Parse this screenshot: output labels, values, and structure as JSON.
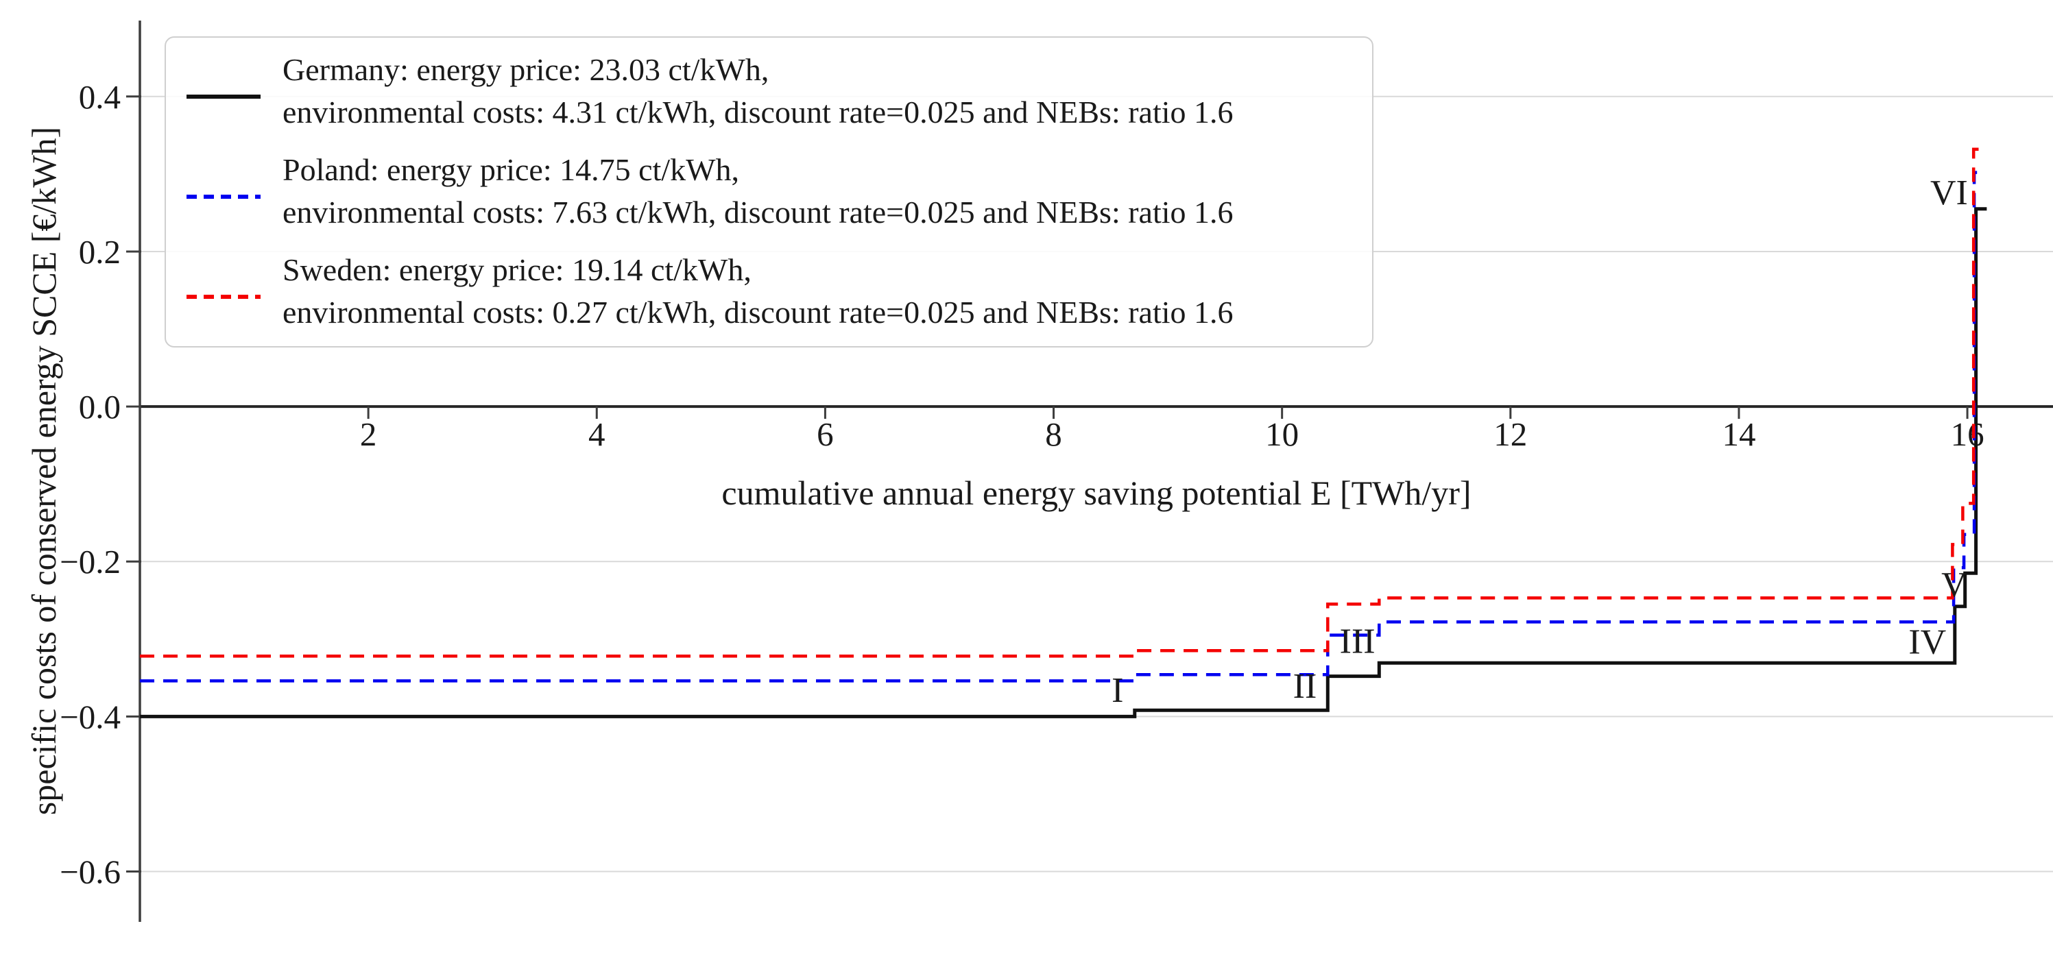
{
  "figure": {
    "background": "#ffffff",
    "text_color": "#1a1a1a",
    "grid_color": "#d9d9d9",
    "axis_color": "#262626",
    "spine_color": "#3d3d3d",
    "legend_border_color": "#cfcfcf"
  },
  "chart_data": {
    "type": "line",
    "subtype": "step",
    "title": "",
    "xlabel": "cumulative annual energy saving potential E [TWh/yr]",
    "ylabel": "specific costs of conserved energy SCCE [€/kWh]",
    "xlim": [
      0,
      16.75
    ],
    "ylim": [
      -0.665,
      0.498
    ],
    "xticks": [
      2,
      4,
      6,
      8,
      10,
      12,
      14,
      16
    ],
    "xtick_labels": [
      "2",
      "4",
      "6",
      "8",
      "10",
      "12",
      "14",
      "16"
    ],
    "yticks": [
      0.4,
      0.2,
      0.0,
      -0.2,
      -0.4,
      -0.6
    ],
    "ytick_labels": [
      "0.4",
      "0.2",
      "0.0",
      "−0.2",
      "−0.4",
      "−0.6"
    ],
    "grid": "horizontal",
    "legend_position": "upper left",
    "series": [
      {
        "name": "Germany",
        "color": "#111111",
        "style": "solid",
        "label_line1": "Germany: energy price: 23.03 ct/kWh,",
        "label_line2": "environmental costs: 4.31 ct/kWh, discount rate=0.025 and NEBs: ratio 1.6",
        "x": [
          0,
          8.71,
          10.4,
          10.85,
          15.89,
          15.98,
          16.075,
          16.17
        ],
        "levels": [
          -0.4,
          -0.392,
          -0.348,
          -0.331,
          -0.258,
          -0.215,
          0.255
        ]
      },
      {
        "name": "Poland",
        "color": "#0000f0",
        "style": "dashed",
        "label_line1": "Poland: energy price: 14.75 ct/kWh,",
        "label_line2": "environmental costs: 7.63 ct/kWh, discount rate=0.025 and NEBs: ratio 1.6",
        "x": [
          0,
          8.71,
          10.4,
          10.85,
          15.88,
          15.97,
          16.06,
          16.13
        ],
        "levels": [
          -0.354,
          -0.346,
          -0.295,
          -0.278,
          -0.208,
          -0.165,
          0.302
        ]
      },
      {
        "name": "Sweden",
        "color": "#f40000",
        "style": "dashed",
        "label_line1": "Sweden: energy price: 19.14 ct/kWh,",
        "label_line2": "environmental costs: 0.27 ct/kWh, discount rate=0.025 and NEBs: ratio 1.6",
        "x": [
          0,
          8.71,
          10.4,
          10.85,
          15.87,
          15.96,
          16.055,
          16.13
        ],
        "levels": [
          -0.322,
          -0.315,
          -0.255,
          -0.247,
          -0.178,
          -0.125,
          0.332
        ]
      }
    ],
    "annotations": [
      {
        "text": "I",
        "x": 8.56,
        "y": -0.365
      },
      {
        "text": "II",
        "x": 10.2,
        "y": -0.36
      },
      {
        "text": "III",
        "x": 10.66,
        "y": -0.302
      },
      {
        "text": "IV",
        "x": 15.65,
        "y": -0.303
      },
      {
        "text": "V",
        "x": 15.885,
        "y": -0.229
      },
      {
        "text": "VI",
        "x": 15.84,
        "y": 0.277
      }
    ]
  }
}
